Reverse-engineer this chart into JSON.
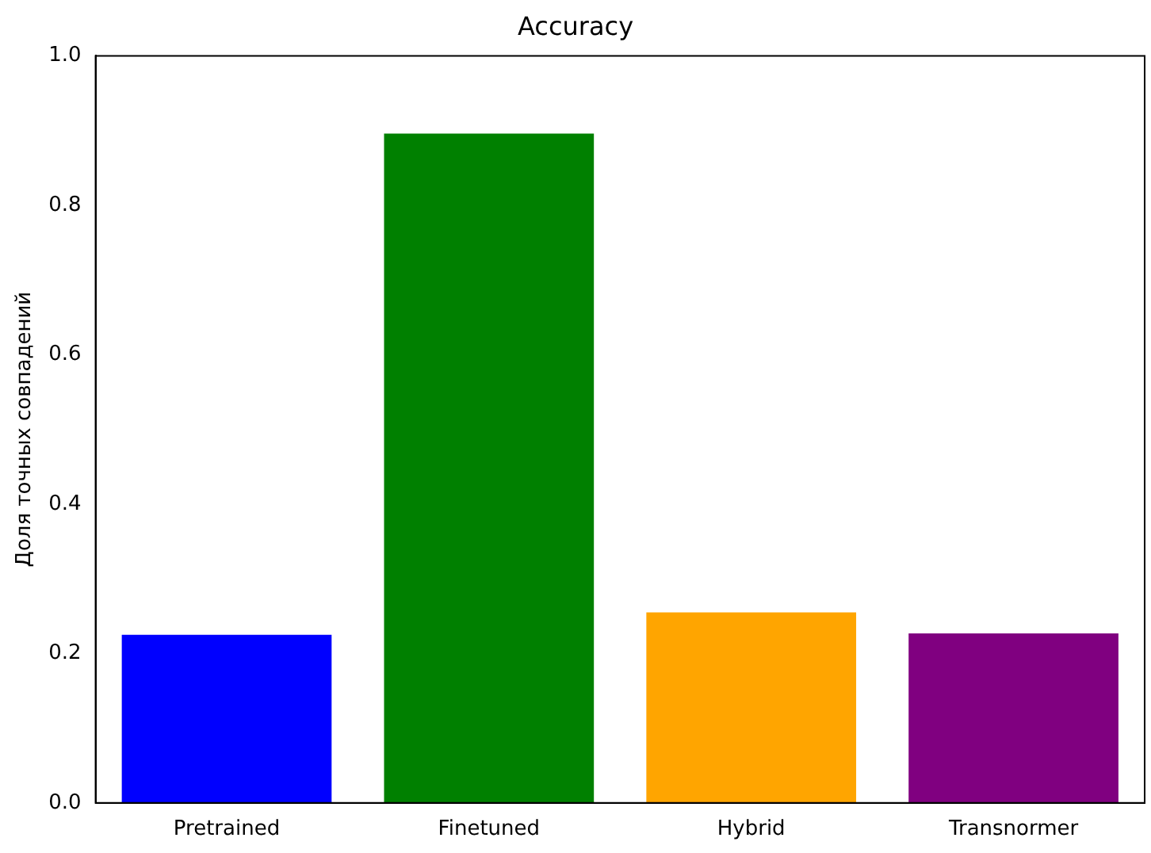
{
  "chart_data": {
    "type": "bar",
    "title": "Accuracy",
    "ylabel": "Доля точных совпадений",
    "categories": [
      "Pretrained",
      "Finetuned",
      "Hybrid",
      "Transnormer"
    ],
    "values": [
      0.225,
      0.896,
      0.255,
      0.227
    ],
    "colors": [
      "#0000ff",
      "#008000",
      "#ffa500",
      "#800080"
    ],
    "ylim": [
      0,
      1
    ],
    "yticks": [
      {
        "value": 0,
        "label": "0.0"
      },
      0.2,
      0.4,
      0.6,
      0.8,
      {
        "value": 1,
        "label": "1.0"
      }
    ],
    "grid": false,
    "legend": false
  }
}
